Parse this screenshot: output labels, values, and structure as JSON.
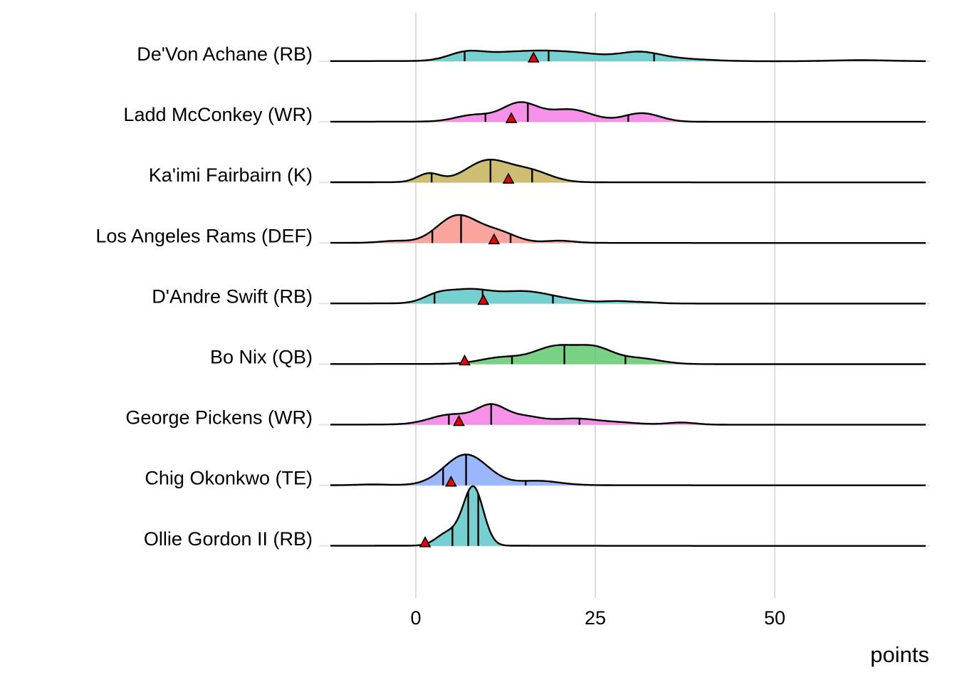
{
  "chart_data": {
    "type": "ridgeline",
    "title": "",
    "xlabel": "points",
    "ylabel": "",
    "xlim": [
      -12,
      71
    ],
    "xticks": [
      0,
      25,
      50
    ],
    "xtick_labels": [
      "0",
      "25",
      "50"
    ],
    "grid": true,
    "legend": "none",
    "series": [
      {
        "name": "De'Von Achane (RB)",
        "color": "#5ec8c8",
        "quantiles": [
          6.8,
          18.5,
          33.2
        ],
        "marker": 16.4,
        "density": [
          [
            7,
            2.5,
            12
          ],
          [
            12,
            3,
            7
          ],
          [
            18,
            4,
            13
          ],
          [
            24,
            3,
            6
          ],
          [
            31,
            3,
            12
          ],
          [
            37,
            4,
            3
          ],
          [
            62,
            4,
            1.5
          ]
        ]
      },
      {
        "name": "Ladd McConkey (WR)",
        "color": "#f37ee4",
        "quantiles": [
          9.7,
          15.6,
          29.6
        ],
        "marker": 13.3,
        "density": [
          [
            8,
            2.5,
            9
          ],
          [
            14.5,
            2.5,
            26
          ],
          [
            21.5,
            3,
            17
          ],
          [
            31.5,
            2.5,
            12
          ]
        ]
      },
      {
        "name": "Ka'imi Fairbairn (K)",
        "color": "#c4b358",
        "quantiles": [
          2.2,
          10.4,
          16.2
        ],
        "marker": 12.9,
        "density": [
          [
            1.8,
            1.6,
            12
          ],
          [
            10,
            3,
            30
          ],
          [
            16,
            2.8,
            15
          ]
        ]
      },
      {
        "name": "Los Angeles Rams (DEF)",
        "color": "#f8958d",
        "quantiles": [
          2.3,
          6.3,
          13.2
        ],
        "marker": 10.9,
        "density": [
          [
            -3,
            2,
            2.5
          ],
          [
            5.8,
            2.8,
            38
          ],
          [
            11.5,
            2.5,
            14
          ],
          [
            20,
            2,
            3
          ]
        ]
      },
      {
        "name": "D'Andre Swift (RB)",
        "color": "#5ec8c8",
        "quantiles": [
          2.6,
          9.3,
          19.1
        ],
        "marker": 9.4,
        "density": [
          [
            3,
            2,
            10
          ],
          [
            7.5,
            3,
            18
          ],
          [
            15,
            3.5,
            16
          ],
          [
            21,
            3,
            4
          ],
          [
            28,
            2,
            3
          ],
          [
            32,
            2,
            1.5
          ]
        ]
      },
      {
        "name": "Bo Nix (QB)",
        "color": "#62c96d",
        "quantiles": [
          13.4,
          20.7,
          29.2
        ],
        "marker": 6.8,
        "density": [
          [
            12,
            3,
            9
          ],
          [
            19.5,
            3,
            24
          ],
          [
            25,
            2.5,
            20
          ],
          [
            31,
            3,
            8
          ]
        ]
      },
      {
        "name": "George Pickens (WR)",
        "color": "#f37ee4",
        "quantiles": [
          4.6,
          10.5,
          22.8
        ],
        "marker": 6.0,
        "density": [
          [
            5,
            3,
            14
          ],
          [
            10.5,
            2,
            24
          ],
          [
            15,
            2.5,
            11
          ],
          [
            22,
            3,
            8
          ],
          [
            28,
            3,
            3
          ],
          [
            37,
            2,
            3
          ]
        ]
      },
      {
        "name": "Chig Okonkwo (TE)",
        "color": "#8aaafa",
        "quantiles": [
          3.8,
          7.0,
          15.3
        ],
        "marker": 4.9,
        "density": [
          [
            7,
            3,
            43
          ],
          [
            17,
            3,
            6
          ],
          [
            -6,
            2,
            1
          ]
        ]
      },
      {
        "name": "Ollie Gordon II (RB)",
        "color": "#5ec8c8",
        "quantiles": [
          5.1,
          7.3,
          8.7
        ],
        "marker": 1.3,
        "density": [
          [
            8,
            1.4,
            82
          ],
          [
            4.5,
            1.6,
            18
          ]
        ]
      }
    ]
  }
}
